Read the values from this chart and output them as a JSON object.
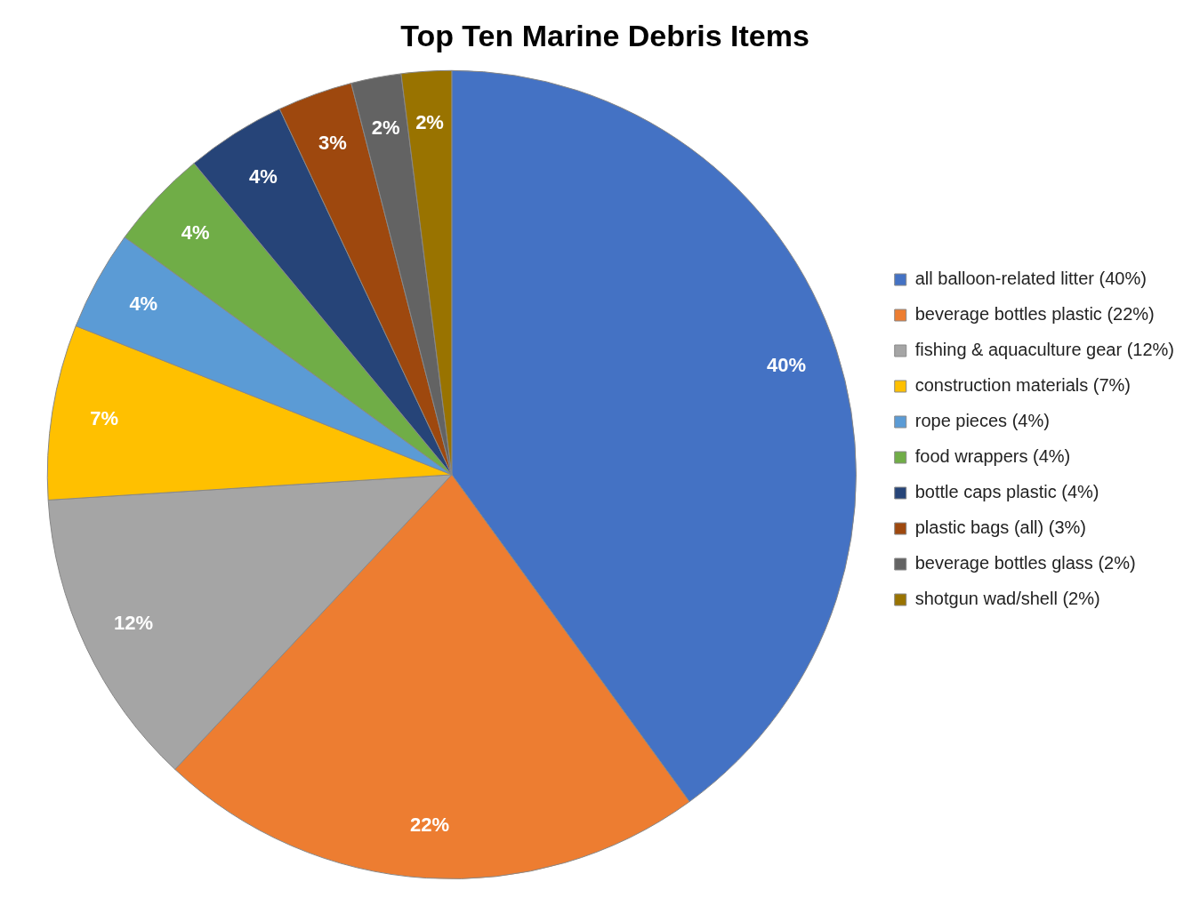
{
  "chart_data": {
    "type": "pie",
    "title": "Top Ten Marine Debris Items",
    "categories": [
      "all balloon-related litter (40%)",
      "beverage bottles plastic (22%)",
      "fishing & aquaculture gear (12%)",
      "construction materials (7%)",
      "rope pieces (4%)",
      "food wrappers (4%)",
      "bottle caps plastic (4%)",
      "plastic bags (all) (3%)",
      "beverage bottles glass (2%)",
      "shotgun wad/shell (2%)"
    ],
    "values": [
      40,
      22,
      12,
      7,
      4,
      4,
      4,
      3,
      2,
      2
    ],
    "value_labels": [
      "40%",
      "22%",
      "12%",
      "7%",
      "4%",
      "4%",
      "4%",
      "3%",
      "2%",
      "2%"
    ],
    "colors": [
      "#4472c4",
      "#ed7d31",
      "#a5a5a5",
      "#ffc000",
      "#5b9bd5",
      "#70ad47",
      "#264478",
      "#9e480e",
      "#636363",
      "#997300"
    ],
    "legend": "right"
  }
}
